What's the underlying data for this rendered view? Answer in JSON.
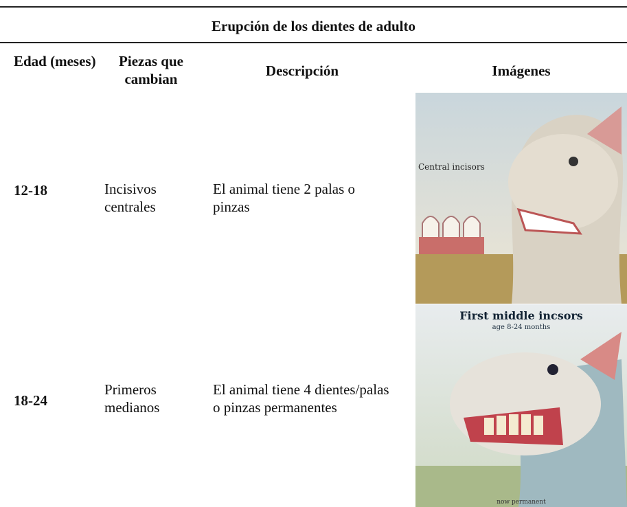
{
  "table": {
    "title": "Erupción de los dientes de adulto",
    "headers": [
      "Edad (meses)",
      "Piezas que cambian",
      "Descripción",
      "Imágenes"
    ],
    "rows": [
      [
        "12-18",
        "Incisivos centrales",
        "El animal tiene 2 palas o pinzas",
        [
          "Central incisors"
        ]
      ],
      [
        "18-24",
        "Primeros medianos",
        "El animal tiene 4 dientes/palas o pinzas permanentes",
        [
          "First middle incsors",
          "age 8-24 months",
          "now permanent"
        ]
      ]
    ]
  }
}
